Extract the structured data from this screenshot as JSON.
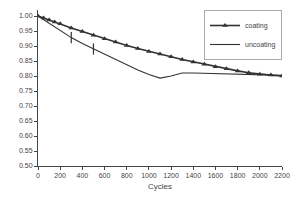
{
  "chart_data": {
    "type": "line",
    "xlabel": "Cycles",
    "series": [
      {
        "name": "coating",
        "color": "#333333",
        "marker": "triangle-up",
        "line_style": "solid",
        "x": [
          0,
          50,
          100,
          150,
          200,
          300,
          400,
          500,
          600,
          700,
          800,
          900,
          1000,
          1100,
          1200,
          1300,
          1400,
          1500,
          1600,
          1700,
          1800,
          1900,
          2000,
          2100,
          2200
        ],
        "values": [
          1.0,
          0.993,
          0.987,
          0.98,
          0.974,
          0.96,
          0.948,
          0.936,
          0.924,
          0.913,
          0.902,
          0.892,
          0.882,
          0.873,
          0.864,
          0.855,
          0.847,
          0.839,
          0.831,
          0.824,
          0.817,
          0.811,
          0.806,
          0.803,
          0.8
        ]
      },
      {
        "name": "uncoating",
        "color": "#333333",
        "line_style": "solid",
        "x": [
          0,
          50,
          100,
          150,
          200,
          300,
          400,
          500,
          600,
          700,
          800,
          900,
          1000,
          1100,
          1200,
          1300,
          1400,
          1500,
          1600,
          1700,
          1800,
          1900,
          2000,
          2100,
          2200
        ],
        "values": [
          1.0,
          0.988,
          0.974,
          0.962,
          0.95,
          0.928,
          0.908,
          0.89,
          0.872,
          0.854,
          0.836,
          0.82,
          0.805,
          0.793,
          0.8,
          0.81,
          0.81,
          0.809,
          0.808,
          0.807,
          0.806,
          0.805,
          0.804,
          0.803,
          0.802
        ]
      },
      {
        "color": "#333333",
        "marker": "line-ns",
        "line_style": "none",
        "x": [
          300,
          500
        ],
        "values": [
          0.928,
          0.89
        ]
      }
    ],
    "xlim": [
      0,
      2200
    ],
    "ylim": [
      0.5,
      1.02
    ],
    "xticks": [
      0,
      200,
      400,
      600,
      800,
      1000,
      1200,
      1400,
      1600,
      1800,
      2000,
      2200
    ],
    "yticks": [
      {
        "value": 0.5,
        "label": "0.50"
      },
      0.55,
      {
        "value": 0.6,
        "label": "0.60"
      },
      0.65,
      {
        "value": 0.7,
        "label": "0.70"
      },
      0.75,
      {
        "value": 0.8,
        "label": "0.80"
      },
      0.85,
      {
        "value": 0.9,
        "label": "0.90"
      },
      0.95,
      {
        "value": 1.0,
        "label": "1.00"
      }
    ],
    "grid": false,
    "legend": "upper right"
  }
}
